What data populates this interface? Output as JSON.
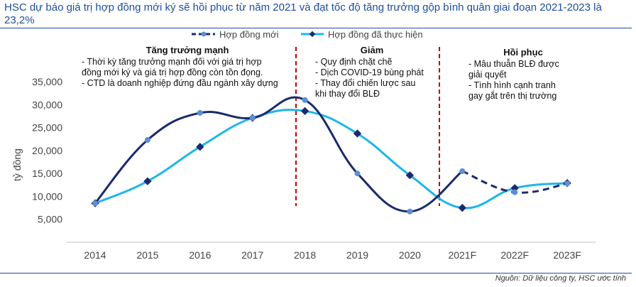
{
  "title": "HSC dự báo giá trị hợp đồng mới ký sẽ hồi phục từ năm 2021 và đạt tốc độ tăng trưởng gộp bình quân giai đoạn 2021-2023 là 23,2%",
  "source": "Nguồn: Dữ liệu công ty, HSC ước tính",
  "colors": {
    "navy": "#1a2a6c",
    "cyan": "#1fb6ea",
    "marker_light": "#5b8fd6",
    "divider": "#c00000"
  },
  "chart_data": {
    "type": "line",
    "categories": [
      "2014",
      "2015",
      "2016",
      "2017",
      "2018",
      "2019",
      "2020",
      "2021F",
      "2022F",
      "2023F"
    ],
    "ylabel": "tỷ đồng",
    "ylim": [
      0,
      35000
    ],
    "yticks": [
      5000,
      10000,
      15000,
      20000,
      25000,
      30000,
      35000
    ],
    "ytick_labels": [
      "5,000",
      "10,000",
      "15,000",
      "20,000",
      "25,000",
      "30,000",
      "35,000"
    ],
    "series": [
      {
        "name": "Hợp đồng mới",
        "style": "dashed-forecast",
        "values": [
          8500,
          22300,
          28200,
          27100,
          31000,
          15000,
          6700,
          15500,
          10900,
          12800
        ]
      },
      {
        "name": "Hợp đồng đã thực hiện",
        "style": "solid",
        "values": [
          8500,
          13300,
          20800,
          27100,
          28600,
          23700,
          14600,
          7500,
          11800,
          12900
        ]
      }
    ],
    "dividers_after": [
      "2017",
      "2020"
    ],
    "phases": [
      {
        "title": "Tăng trưởng mạnh",
        "lines": [
          "- Thời kỳ tăng trưởng mạnh đối với giá trị hợp",
          "đồng mới ký và giá trị hợp đồng còn tồn đọng.",
          "- CTD là doanh nghiệp đứng đầu ngành xây dựng"
        ]
      },
      {
        "title": "Giảm",
        "lines": [
          "- Quy định chặt chẽ",
          "- Dịch COVID-19 bùng phát",
          "- Thay đổi chiến lược sau",
          "khi thay đổi BLĐ"
        ]
      },
      {
        "title": "Hồi phục",
        "lines": [
          "- Mâu thuẫn BLĐ được",
          "giải quyết",
          "- Tình hình cạnh tranh",
          "gay gắt trên thị trường"
        ]
      }
    ]
  }
}
